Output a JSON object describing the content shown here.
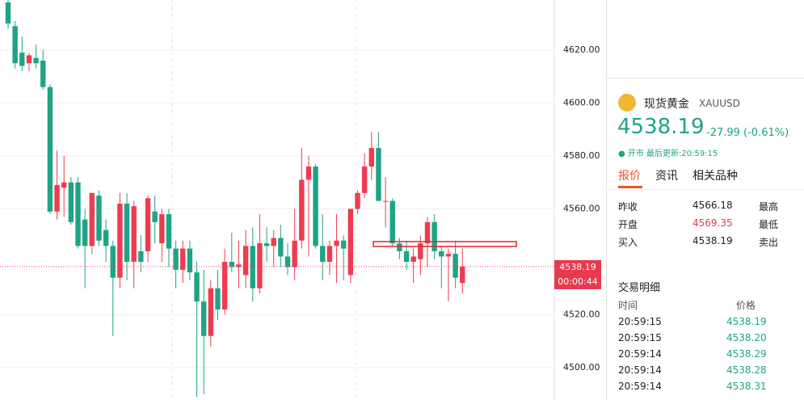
{
  "chart_data": {
    "type": "candlestick",
    "open": [
      4638,
      4629,
      4619,
      4615,
      4617,
      4616,
      4606,
      4559,
      4568,
      4570,
      4570,
      4556,
      4546,
      4565,
      4552,
      4546,
      4534,
      4562,
      4540,
      4544,
      4544,
      4559,
      4547,
      4558,
      4545,
      4537,
      4545,
      4536,
      4525,
      4512,
      4530,
      4522,
      4540,
      4538,
      4535,
      4546,
      4530,
      4547,
      4546,
      4549,
      4542,
      4538,
      4548,
      4571,
      4576,
      4546,
      4540,
      4546,
      4548,
      4535,
      4560,
      4566,
      4576,
      4583,
      4563,
      4563,
      4547,
      4544,
      4540,
      4541,
      4547,
      4555,
      4544,
      4542,
      4543,
      4532
    ],
    "high": [
      4639,
      4631,
      4625,
      4619,
      4622,
      4620,
      4607,
      4582,
      4580,
      4572,
      4572,
      4560,
      4566,
      4567,
      4556,
      4548,
      4566,
      4566,
      4563,
      4550,
      4565,
      4565,
      4560,
      4560,
      4548,
      4548,
      4548,
      4540,
      4537,
      4533,
      4537,
      4545,
      4551,
      4548,
      4552,
      4553,
      4558,
      4553,
      4552,
      4554,
      4547,
      4560,
      4583,
      4580,
      4577,
      4558,
      4548,
      4558,
      4550,
      4560,
      4567,
      4581,
      4589,
      4589,
      4572,
      4564,
      4549,
      4548,
      4545,
      4550,
      4557,
      4558,
      4546,
      4545,
      4548,
      4545
    ],
    "low": [
      4628,
      4613,
      4612,
      4612,
      4613,
      4605,
      4558,
      4556,
      4557,
      4554,
      4545,
      4530,
      4543,
      4546,
      4540,
      4512,
      4530,
      4533,
      4530,
      4536,
      4540,
      4547,
      4540,
      4538,
      4530,
      4532,
      4533,
      4489,
      4490,
      4508,
      4518,
      4520,
      4536,
      4530,
      4530,
      4525,
      4528,
      4540,
      4538,
      4538,
      4535,
      4533,
      4545,
      4542,
      4545,
      4533,
      4535,
      4532,
      4533,
      4532,
      4558,
      4564,
      4571,
      4563,
      4553,
      4546,
      4541,
      4537,
      4532,
      4535,
      4538,
      4541,
      4530,
      4525,
      4530,
      4528
    ],
    "close": [
      4630,
      4615,
      4614,
      4618,
      4615,
      4606,
      4559,
      4569,
      4570,
      4555,
      4546,
      4546,
      4566,
      4548,
      4546,
      4534,
      4562,
      4540,
      4561,
      4540,
      4564,
      4555,
      4558,
      4545,
      4537,
      4545,
      4536,
      4525,
      4512,
      4530,
      4522,
      4540,
      4538,
      4539,
      4546,
      4530,
      4547,
      4546,
      4549,
      4542,
      4538,
      4548,
      4571,
      4576,
      4546,
      4540,
      4546,
      4548,
      4545,
      4560,
      4566,
      4576,
      4583,
      4563,
      4563,
      4547,
      4544,
      4540,
      4542,
      4547,
      4555,
      4544,
      4542,
      4543,
      4534,
      4538.19
    ],
    "up_color": "#ef3b4f",
    "down_color": "#1ea387",
    "ylim": [
      4487.8,
      4638.9
    ],
    "yticks": [
      {
        "value": 4500,
        "label": "4500.00"
      },
      {
        "value": 4520,
        "label": "4520.00"
      },
      {
        "value": 4560,
        "label": "4560.00"
      },
      {
        "value": 4580,
        "label": "4580.00"
      },
      {
        "value": 4600,
        "label": "4600.00"
      },
      {
        "value": 4620,
        "label": "4620.00"
      }
    ],
    "grid": true,
    "last_price": 4538.19,
    "countdown": "00:00:44"
  },
  "quote": {
    "name": "现货黄金",
    "symbol": "XAUUSD",
    "price": "4538.19",
    "change": "-27.99 (-0.61%)",
    "status": "开市",
    "last_update": "最后更新:20:59:15",
    "tabs": [
      "报价",
      "资讯",
      "相关品种"
    ],
    "stats": [
      [
        "昨收",
        "4566.18",
        "最高"
      ],
      [
        "开盘",
        "4569.35",
        "最低"
      ],
      [
        "买入",
        "4538.19",
        "卖出"
      ]
    ]
  },
  "trades": {
    "title": "交易明细",
    "headers": [
      "时间",
      "价格"
    ],
    "rows": [
      [
        "20:59:15",
        "4538.19"
      ],
      [
        "20:59:15",
        "4538.20"
      ],
      [
        "20:59:14",
        "4538.29"
      ],
      [
        "20:59:14",
        "4538.28"
      ],
      [
        "20:59:14",
        "4538.31"
      ]
    ]
  }
}
